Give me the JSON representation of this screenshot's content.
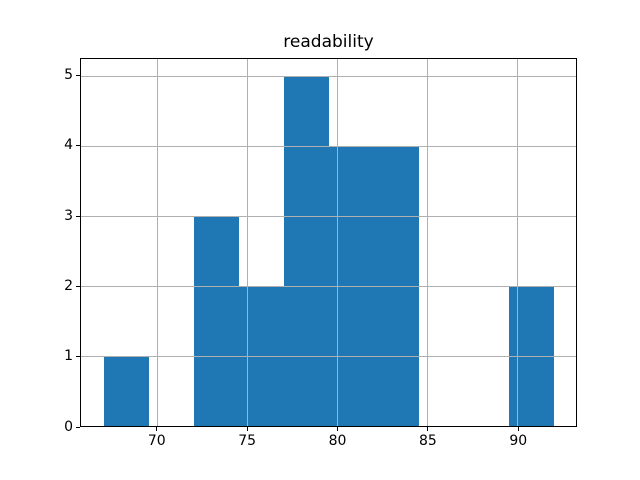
{
  "chart_data": {
    "type": "bar",
    "subtype": "histogram",
    "title": "readability",
    "xlabel": "",
    "ylabel": "",
    "bin_edges": [
      67,
      69.5,
      72,
      74.5,
      77,
      79.5,
      82,
      84.5,
      87,
      89.5,
      92
    ],
    "counts": [
      1,
      0,
      3,
      2,
      5,
      4,
      4,
      0,
      0,
      2
    ],
    "xticks": [
      70,
      75,
      80,
      85,
      90
    ],
    "yticks": [
      0,
      1,
      2,
      3,
      4,
      5
    ],
    "xlim": [
      65.75,
      93.25
    ],
    "ylim": [
      0,
      5.25
    ],
    "grid": true,
    "grid_above_bars": true,
    "legend": false,
    "colors": {
      "bar": "#1f77b4",
      "grid": "#b0b0b0",
      "spine": "#000000",
      "background": "#ffffff"
    }
  }
}
